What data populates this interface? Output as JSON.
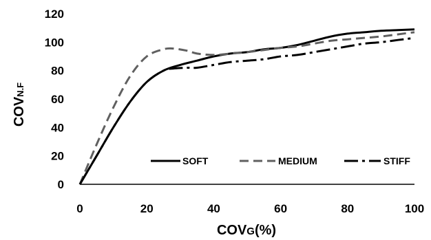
{
  "chart_data": {
    "type": "line",
    "xlabel": "COVG(%)",
    "xlabel_main": "COV",
    "xlabel_sub": "G",
    "xlabel_tail": "(%)",
    "ylabel": "COVN.F",
    "ylabel_main": "COV",
    "ylabel_sub": "N.F",
    "xlim": [
      0,
      100
    ],
    "ylim": [
      0,
      120
    ],
    "xticks": [
      0,
      20,
      40,
      60,
      80,
      100
    ],
    "yticks": [
      0,
      20,
      40,
      60,
      80,
      100,
      120
    ],
    "grid": false,
    "legend_position": "lower-right",
    "series": [
      {
        "name": "SOFT",
        "style": "solid",
        "color": "#000000",
        "points": [
          [
            0,
            0
          ],
          [
            5,
            20
          ],
          [
            10,
            40
          ],
          [
            15,
            58
          ],
          [
            20,
            72
          ],
          [
            25,
            80
          ],
          [
            30,
            84
          ],
          [
            35,
            87
          ],
          [
            40,
            90
          ],
          [
            45,
            92
          ],
          [
            50,
            93
          ],
          [
            55,
            95
          ],
          [
            60,
            96
          ],
          [
            65,
            98
          ],
          [
            70,
            101
          ],
          [
            75,
            104
          ],
          [
            80,
            106
          ],
          [
            85,
            107
          ],
          [
            90,
            108
          ],
          [
            95,
            108.5
          ],
          [
            100,
            109
          ]
        ]
      },
      {
        "name": "MEDIUM",
        "style": "dashed",
        "color": "#606060",
        "points": [
          [
            0,
            0
          ],
          [
            5,
            28
          ],
          [
            10,
            54
          ],
          [
            15,
            76
          ],
          [
            20,
            90
          ],
          [
            25,
            95
          ],
          [
            28,
            95.5
          ],
          [
            32,
            94
          ],
          [
            35,
            92
          ],
          [
            40,
            91
          ],
          [
            45,
            92
          ],
          [
            50,
            93
          ],
          [
            55,
            94.5
          ],
          [
            60,
            96
          ],
          [
            65,
            97
          ],
          [
            70,
            99
          ],
          [
            75,
            101
          ],
          [
            80,
            102
          ],
          [
            85,
            103
          ],
          [
            90,
            104
          ],
          [
            95,
            105.5
          ],
          [
            100,
            107
          ]
        ]
      },
      {
        "name": "STIFF",
        "style": "dashdot",
        "color": "#000000",
        "points": [
          [
            0,
            0
          ],
          [
            5,
            20
          ],
          [
            10,
            40
          ],
          [
            15,
            58
          ],
          [
            20,
            72
          ],
          [
            25,
            80
          ],
          [
            28,
            81.5
          ],
          [
            32,
            82
          ],
          [
            35,
            82
          ],
          [
            40,
            84
          ],
          [
            45,
            86
          ],
          [
            50,
            87
          ],
          [
            55,
            88
          ],
          [
            60,
            90
          ],
          [
            65,
            91
          ],
          [
            70,
            93
          ],
          [
            75,
            95
          ],
          [
            80,
            97
          ],
          [
            85,
            99
          ],
          [
            90,
            100
          ],
          [
            95,
            101.5
          ],
          [
            100,
            103
          ]
        ]
      }
    ]
  }
}
